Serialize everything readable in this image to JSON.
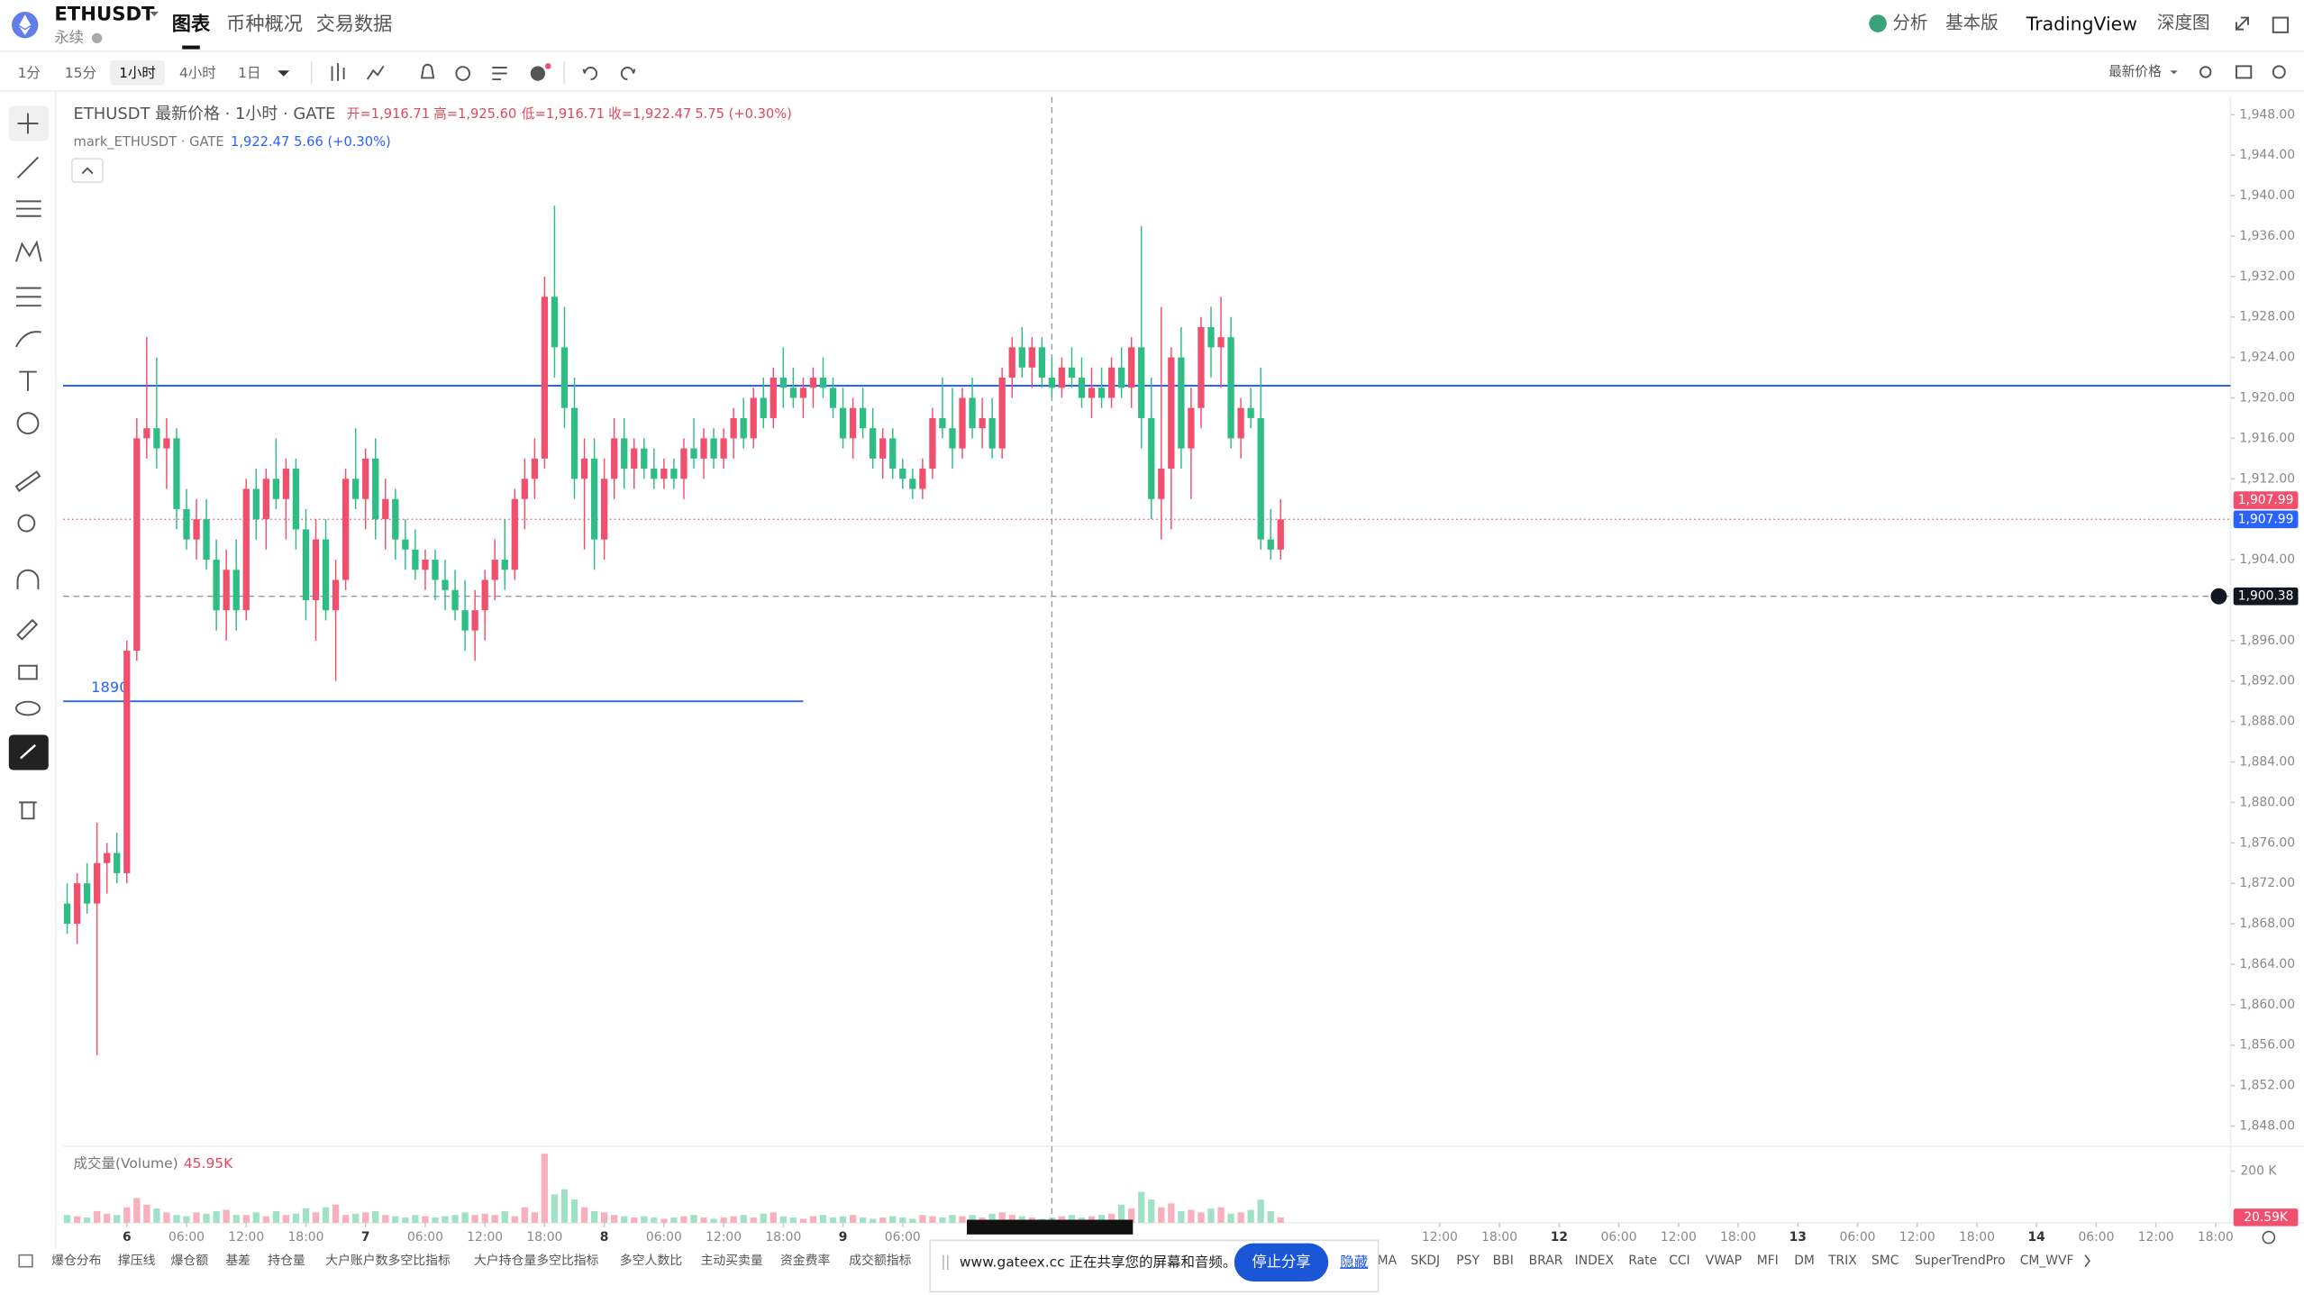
{
  "header": {
    "symbol": "ETHUSDT",
    "subtitle": "永续",
    "tabs": [
      "图表",
      "币种概况",
      "交易数据"
    ],
    "right": [
      "分析",
      "基本版",
      "TradingView",
      "深度图"
    ]
  },
  "toolbar": {
    "intervals": [
      "1分",
      "15分",
      "1小时",
      "4小时",
      "1日"
    ],
    "price_source": "最新价格"
  },
  "chart_data": {
    "type": "candlestick",
    "title": "ETHUSDT 最新价格 · 1小时 · GATE",
    "legend": [
      "开=1,916.71",
      "高=1,925.60",
      "低=1,916.71",
      "收=1,922.47",
      "5.75 (+0.30%)"
    ],
    "mark_legend": [
      "mark_ETHUSDT · GATE",
      "1,922.47",
      "5.66 (+0.30%)"
    ],
    "up_color": "#f0506e",
    "down_color": "#2ebd85",
    "x": [
      -6,
      -5,
      -4,
      -3,
      -2,
      -1,
      0,
      1,
      2,
      3,
      4,
      5,
      6,
      7,
      8,
      9,
      10,
      11,
      12,
      13,
      14,
      15,
      16,
      17,
      18,
      19,
      20,
      21,
      22,
      23,
      24,
      25,
      26,
      27,
      28,
      29,
      30,
      31,
      32,
      33,
      34,
      35,
      36,
      37,
      38,
      39,
      40,
      41,
      42,
      43,
      44,
      45,
      46,
      47,
      48,
      49,
      50,
      51,
      52,
      53,
      54,
      55,
      56,
      57,
      58,
      59,
      60,
      61,
      62,
      63,
      64,
      65,
      66,
      67,
      68,
      69,
      70,
      71,
      72,
      73,
      74,
      75,
      76,
      77,
      78,
      79,
      80,
      81,
      82,
      83,
      84,
      85,
      86,
      87,
      88,
      89,
      90,
      91,
      92,
      93,
      94,
      95,
      96,
      97,
      98,
      99,
      100,
      101,
      102,
      103,
      104,
      105,
      106,
      107,
      108,
      109,
      110,
      111,
      112,
      113,
      114,
      115,
      116
    ],
    "values": [
      [
        1870,
        1872,
        1867,
        1868
      ],
      [
        1868,
        1873,
        1866,
        1872
      ],
      [
        1872,
        1874,
        1869,
        1870
      ],
      [
        1870,
        1878,
        1855,
        1874
      ],
      [
        1874,
        1876,
        1871,
        1875
      ],
      [
        1875,
        1877,
        1872,
        1873
      ],
      [
        1873,
        1896,
        1872,
        1895
      ],
      [
        1895,
        1918,
        1894,
        1916
      ],
      [
        1916,
        1926,
        1914,
        1917
      ],
      [
        1917,
        1924,
        1913,
        1915
      ],
      [
        1915,
        1918,
        1911,
        1916
      ],
      [
        1916,
        1917,
        1907,
        1909
      ],
      [
        1909,
        1911,
        1905,
        1906
      ],
      [
        1906,
        1910,
        1904,
        1908
      ],
      [
        1908,
        1910,
        1903,
        1904
      ],
      [
        1904,
        1906,
        1897,
        1899
      ],
      [
        1899,
        1905,
        1896,
        1903
      ],
      [
        1903,
        1906,
        1897,
        1899
      ],
      [
        1899,
        1912,
        1898,
        1911
      ],
      [
        1911,
        1913,
        1906,
        1908
      ],
      [
        1908,
        1913,
        1905,
        1912
      ],
      [
        1912,
        1916,
        1909,
        1910
      ],
      [
        1910,
        1914,
        1906,
        1913
      ],
      [
        1913,
        1914,
        1905,
        1907
      ],
      [
        1907,
        1909,
        1898,
        1900
      ],
      [
        1900,
        1908,
        1896,
        1906
      ],
      [
        1906,
        1908,
        1898,
        1899
      ],
      [
        1899,
        1904,
        1892,
        1902
      ],
      [
        1902,
        1913,
        1901,
        1912
      ],
      [
        1912,
        1917,
        1909,
        1910
      ],
      [
        1910,
        1915,
        1907,
        1914
      ],
      [
        1914,
        1916,
        1906,
        1908
      ],
      [
        1908,
        1912,
        1905,
        1910
      ],
      [
        1910,
        1911,
        1904,
        1906
      ],
      [
        1906,
        1908,
        1903,
        1905
      ],
      [
        1905,
        1907,
        1902,
        1903
      ],
      [
        1903,
        1905,
        1901,
        1904
      ],
      [
        1904,
        1905,
        1900,
        1902
      ],
      [
        1902,
        1904,
        1899,
        1901
      ],
      [
        1901,
        1903,
        1898,
        1899
      ],
      [
        1899,
        1902,
        1895,
        1897
      ],
      [
        1897,
        1901,
        1894,
        1899
      ],
      [
        1899,
        1903,
        1896,
        1902
      ],
      [
        1902,
        1906,
        1900,
        1904
      ],
      [
        1904,
        1908,
        1901,
        1903
      ],
      [
        1903,
        1911,
        1902,
        1910
      ],
      [
        1910,
        1914,
        1907,
        1912
      ],
      [
        1912,
        1916,
        1910,
        1914
      ],
      [
        1914,
        1932,
        1913,
        1930
      ],
      [
        1930,
        1939,
        1922,
        1925
      ],
      [
        1925,
        1929,
        1917,
        1919
      ],
      [
        1919,
        1922,
        1910,
        1912
      ],
      [
        1912,
        1916,
        1905,
        1914
      ],
      [
        1914,
        1916,
        1903,
        1906
      ],
      [
        1906,
        1914,
        1904,
        1912
      ],
      [
        1912,
        1918,
        1910,
        1916
      ],
      [
        1916,
        1918,
        1911,
        1913
      ],
      [
        1913,
        1916,
        1911,
        1915
      ],
      [
        1915,
        1916,
        1912,
        1913
      ],
      [
        1913,
        1915,
        1911,
        1912
      ],
      [
        1912,
        1914,
        1911,
        1913
      ],
      [
        1913,
        1914,
        1911,
        1912
      ],
      [
        1912,
        1916,
        1910,
        1915
      ],
      [
        1915,
        1918,
        1913,
        1914
      ],
      [
        1914,
        1917,
        1912,
        1916
      ],
      [
        1916,
        1917,
        1913,
        1914
      ],
      [
        1914,
        1917,
        1913,
        1916
      ],
      [
        1916,
        1919,
        1914,
        1918
      ],
      [
        1918,
        1920,
        1915,
        1916
      ],
      [
        1916,
        1921,
        1915,
        1920
      ],
      [
        1920,
        1922,
        1917,
        1918
      ],
      [
        1918,
        1923,
        1917,
        1922
      ],
      [
        1922,
        1925,
        1919,
        1921
      ],
      [
        1921,
        1923,
        1919,
        1920
      ],
      [
        1920,
        1922,
        1918,
        1921
      ],
      [
        1921,
        1923,
        1919,
        1922
      ],
      [
        1922,
        1924,
        1920,
        1921
      ],
      [
        1921,
        1922,
        1918,
        1919
      ],
      [
        1919,
        1921,
        1915,
        1916
      ],
      [
        1916,
        1920,
        1914,
        1919
      ],
      [
        1919,
        1921,
        1916,
        1917
      ],
      [
        1917,
        1919,
        1913,
        1914
      ],
      [
        1914,
        1917,
        1912,
        1916
      ],
      [
        1916,
        1917,
        1912,
        1913
      ],
      [
        1913,
        1914,
        1911,
        1912
      ],
      [
        1912,
        1913,
        1910,
        1911
      ],
      [
        1911,
        1914,
        1910,
        1913
      ],
      [
        1913,
        1919,
        1912,
        1918
      ],
      [
        1918,
        1922,
        1916,
        1917
      ],
      [
        1917,
        1921,
        1913,
        1915
      ],
      [
        1915,
        1921,
        1914,
        1920
      ],
      [
        1920,
        1922,
        1916,
        1917
      ],
      [
        1917,
        1920,
        1915,
        1918
      ],
      [
        1918,
        1920,
        1914,
        1915
      ],
      [
        1915,
        1923,
        1914,
        1922
      ],
      [
        1922,
        1926,
        1920,
        1925
      ],
      [
        1925,
        1927,
        1922,
        1923
      ],
      [
        1923,
        1926,
        1921,
        1925
      ],
      [
        1925,
        1926,
        1921,
        1922
      ],
      [
        1922,
        1924,
        1920,
        1921
      ],
      [
        1921,
        1924,
        1920,
        1923
      ],
      [
        1923,
        1925,
        1921,
        1922
      ],
      [
        1922,
        1924,
        1919,
        1920
      ],
      [
        1920,
        1923,
        1918,
        1921
      ],
      [
        1921,
        1923,
        1919,
        1920
      ],
      [
        1920,
        1924,
        1919,
        1923
      ],
      [
        1923,
        1925,
        1920,
        1921
      ],
      [
        1921,
        1926,
        1919,
        1925
      ],
      [
        1925,
        1937,
        1915,
        1918
      ],
      [
        1918,
        1922,
        1908,
        1910
      ],
      [
        1910,
        1929,
        1906,
        1913
      ],
      [
        1913,
        1925,
        1907,
        1924
      ],
      [
        1924,
        1927,
        1913,
        1915
      ],
      [
        1915,
        1921,
        1910,
        1919
      ],
      [
        1919,
        1928,
        1917,
        1927
      ],
      [
        1927,
        1929,
        1922,
        1925
      ],
      [
        1925,
        1930,
        1921,
        1926
      ],
      [
        1926,
        1928,
        1915,
        1916
      ],
      [
        1916,
        1920,
        1914,
        1919
      ],
      [
        1919,
        1921,
        1917,
        1918
      ],
      [
        1918,
        1923,
        1905,
        1906
      ],
      [
        1906,
        1909,
        1904,
        1905
      ],
      [
        1905,
        1910,
        1904,
        1907.99
      ]
    ],
    "xlim": [
      -6.4,
      211.5
    ],
    "xticks": [
      {
        "value": 0,
        "label": "6"
      },
      {
        "value": 6,
        "label": "06:00"
      },
      {
        "value": 12,
        "label": "12:00"
      },
      {
        "value": 18,
        "label": "18:00"
      },
      {
        "value": 24,
        "label": "7"
      },
      {
        "value": 30,
        "label": "06:00"
      },
      {
        "value": 36,
        "label": "12:00"
      },
      {
        "value": 42,
        "label": "18:00"
      },
      {
        "value": 48,
        "label": "8"
      },
      {
        "value": 54,
        "label": "06:00"
      },
      {
        "value": 60,
        "label": "12:00"
      },
      {
        "value": 66,
        "label": "18:00"
      },
      {
        "value": 72,
        "label": "9"
      },
      {
        "value": 78,
        "label": "06:00"
      },
      {
        "value": 132,
        "label": "12:00"
      },
      {
        "value": 138,
        "label": "18:00"
      },
      {
        "value": 144,
        "label": "12"
      },
      {
        "value": 150,
        "label": "06:00"
      },
      {
        "value": 156,
        "label": "12:00"
      },
      {
        "value": 162,
        "label": "18:00"
      },
      {
        "value": 168,
        "label": "13"
      },
      {
        "value": 174,
        "label": "06:00"
      },
      {
        "value": 180,
        "label": "12:00"
      },
      {
        "value": 186,
        "label": "18:00"
      },
      {
        "value": 192,
        "label": "14"
      },
      {
        "value": 198,
        "label": "06:00"
      },
      {
        "value": 204,
        "label": "12:00"
      },
      {
        "value": 210,
        "label": "18:00"
      }
    ],
    "ylim": [
      1846,
      1949.75
    ],
    "yticks": [
      {
        "value": 1948,
        "label": "1,948.00"
      },
      {
        "value": 1944,
        "label": "1,944.00"
      },
      {
        "value": 1940,
        "label": "1,940.00"
      },
      {
        "value": 1936,
        "label": "1,936.00"
      },
      {
        "value": 1932,
        "label": "1,932.00"
      },
      {
        "value": 1928,
        "label": "1,928.00"
      },
      {
        "value": 1924,
        "label": "1,924.00"
      },
      {
        "value": 1920,
        "label": "1,920.00"
      },
      {
        "value": 1916,
        "label": "1,916.00"
      },
      {
        "value": 1912,
        "label": "1,912.00"
      },
      {
        "value": 1904,
        "label": "1,904.00"
      },
      {
        "value": 1896,
        "label": "1,896.00"
      },
      {
        "value": 1892,
        "label": "1,892.00"
      },
      {
        "value": 1888,
        "label": "1,888.00"
      },
      {
        "value": 1884,
        "label": "1,884.00"
      },
      {
        "value": 1880,
        "label": "1,880.00"
      },
      {
        "value": 1876,
        "label": "1,876.00"
      },
      {
        "value": 1872,
        "label": "1,872.00"
      },
      {
        "value": 1868,
        "label": "1,868.00"
      },
      {
        "value": 1864,
        "label": "1,864.00"
      },
      {
        "value": 1860,
        "label": "1,860.00"
      },
      {
        "value": 1856,
        "label": "1,856.00"
      },
      {
        "value": 1852,
        "label": "1,852.00"
      },
      {
        "value": 1848,
        "label": "1,848.00"
      }
    ],
    "hlines": [
      {
        "value": 1921.2,
        "color": "#2962ff"
      },
      {
        "value": 1890,
        "label": "1890",
        "color": "#2962ff",
        "x_end": 68
      }
    ],
    "last_price": {
      "value": 1907.99,
      "label": "1,907.99",
      "color": "#f0506e"
    },
    "mark_price": {
      "value": 1907.99,
      "label": "1,907.99",
      "color": "#2962ff"
    },
    "crosshair": {
      "value": 1900.38,
      "label": "1,900.38",
      "x": 93
    },
    "volume": {
      "label": "成交量(Volume)",
      "legend_value": "45.95K",
      "ylim": [
        0,
        297000
      ],
      "yticks": [
        {
          "value": 200000,
          "label": "200 K"
        }
      ],
      "tag": {
        "value": 20590,
        "label": "20.59K"
      },
      "values": [
        30000,
        25000,
        20000,
        45000,
        35000,
        30000,
        60000,
        95000,
        70000,
        55000,
        40000,
        30000,
        25000,
        40000,
        35000,
        45000,
        50000,
        30000,
        30000,
        40000,
        25000,
        45000,
        30000,
        35000,
        55000,
        40000,
        60000,
        70000,
        30000,
        35000,
        40000,
        45000,
        30000,
        25000,
        20000,
        30000,
        25000,
        20000,
        25000,
        30000,
        40000,
        30000,
        35000,
        30000,
        45000,
        25000,
        60000,
        40000,
        268000,
        110000,
        130000,
        90000,
        60000,
        45000,
        40000,
        30000,
        25000,
        20000,
        25000,
        20000,
        15000,
        20000,
        25000,
        30000,
        20000,
        15000,
        20000,
        25000,
        30000,
        20000,
        35000,
        40000,
        25000,
        20000,
        15000,
        25000,
        30000,
        20000,
        25000,
        30000,
        20000,
        15000,
        20000,
        25000,
        20000,
        15000,
        30000,
        25000,
        20000,
        30000,
        25000,
        30000,
        20000,
        35000,
        40000,
        30000,
        25000,
        20000,
        15000,
        20000,
        25000,
        30000,
        20000,
        25000,
        30000,
        35000,
        70000,
        55000,
        120000,
        90000,
        60000,
        75000,
        45000,
        50000,
        40000,
        55000,
        60000,
        35000,
        40000,
        50000,
        90000,
        45000,
        20590
      ]
    }
  },
  "indicators": [
    "爆仓分布",
    "撑压线",
    "爆仓额",
    "基差",
    "持仓量",
    "大户账户数多空比指标",
    "大户持仓量多空比指标",
    "多空人数比",
    "主动买卖量",
    "资金费率",
    "成交额指标",
    "MA",
    "SKDJ",
    "PSY",
    "BBI",
    "BRAR",
    "INDEX",
    "Rate",
    "CCI",
    "VWAP",
    "MFI",
    "DM",
    "TRIX",
    "SMC",
    "SuperTrendPro",
    "CM_WVF"
  ],
  "share_bar": {
    "message": "www.gateex.cc 正在共享您的屏幕和音频。",
    "stop": "停止分享",
    "hide": "隐藏"
  }
}
